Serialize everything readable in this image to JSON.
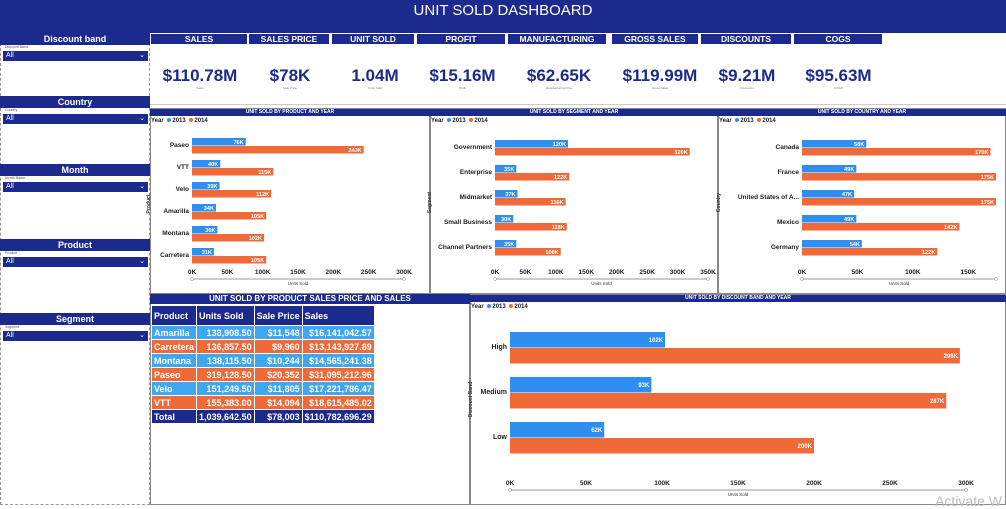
{
  "dashboard_title": "UNIT SOLD DASHBOARD",
  "colors": {
    "navy": "#1b2a8c",
    "y2013": "#2f8ff0",
    "y2014": "#ef6a38",
    "light": "#3fa7f0"
  },
  "slicers": [
    {
      "label": "Discount band",
      "field": "Discount Band",
      "value": "All"
    },
    {
      "label": "Country",
      "field": "Country",
      "value": "All"
    },
    {
      "label": "Month",
      "field": "Month Name",
      "value": "All"
    },
    {
      "label": "Product",
      "field": "Product",
      "value": "All"
    },
    {
      "label": "Segment",
      "field": "Segment",
      "value": "All"
    }
  ],
  "kpis": [
    {
      "header": "SALES",
      "value": "$110.78M",
      "sub": "Sales"
    },
    {
      "header": "SALES PRICE",
      "value": "$78K",
      "sub": "Sale Price"
    },
    {
      "header": "UNIT SOLD",
      "value": "1.04M",
      "sub": "Units Sold"
    },
    {
      "header": "PROFIT",
      "value": "$15.16M",
      "sub": "Profit"
    },
    {
      "header": "MANUFACTURING PRICE",
      "value": "$62.65K",
      "sub": "Manufacturing Price"
    },
    {
      "header": "GROSS SALES",
      "value": "$119.99M",
      "sub": "Gross Sales"
    },
    {
      "header": "DISCOUNTS",
      "value": "$9.21M",
      "sub": "Discounts"
    },
    {
      "header": "COGS",
      "value": "$95.63M",
      "sub": "COGS"
    }
  ],
  "legend": {
    "title": "Year",
    "y2013": "2013",
    "y2014": "2014"
  },
  "chart_data": [
    {
      "type": "bar",
      "orientation": "horizontal",
      "title": "UNIT SOLD BY PRODUCT AND YEAR",
      "ylabel": "Product",
      "xlabel": "Units Sold",
      "categories": [
        "Paseo",
        "VTT",
        "Velo",
        "Amarilla",
        "Montana",
        "Carretera"
      ],
      "series": [
        {
          "name": "2013",
          "values": [
            76000,
            40000,
            39000,
            34000,
            36000,
            31000
          ],
          "labels": [
            "76K",
            "40K",
            "39K",
            "34K",
            "36K",
            "31K"
          ]
        },
        {
          "name": "2014",
          "values": [
            243000,
            115000,
            112000,
            105000,
            102000,
            105000
          ],
          "labels": [
            "243K",
            "115K",
            "112K",
            "105K",
            "102K",
            "105K"
          ]
        }
      ],
      "xlim": [
        0,
        300000
      ],
      "ticks": [
        "0K",
        "50K",
        "100K",
        "150K",
        "200K",
        "250K",
        "300K"
      ]
    },
    {
      "type": "bar",
      "orientation": "horizontal",
      "title": "UNIT SOLD BY SEGMENT AND YEAR",
      "ylabel": "Segment",
      "xlabel": "Units Sold",
      "categories": [
        "Government",
        "Enterprise",
        "Midmarket",
        "Small Business",
        "Channel Partners"
      ],
      "series": [
        {
          "name": "2013",
          "values": [
            120000,
            35000,
            37000,
            30000,
            35000
          ],
          "labels": [
            "120K",
            "35K",
            "37K",
            "30K",
            "35K"
          ]
        },
        {
          "name": "2014",
          "values": [
            320000,
            122000,
            116000,
            118000,
            108000
          ],
          "labels": [
            "320K",
            "122K",
            "116K",
            "118K",
            "108K"
          ]
        }
      ],
      "xlim": [
        0,
        350000
      ],
      "ticks": [
        "0K",
        "50K",
        "100K",
        "150K",
        "200K",
        "250K",
        "300K",
        "350K"
      ]
    },
    {
      "type": "bar",
      "orientation": "horizontal",
      "title": "UNIT SOLD BY COUNTRY AND YEAR",
      "ylabel": "Country",
      "xlabel": "Units Sold",
      "categories": [
        "Canada",
        "France",
        "United States of A...",
        "Mexico",
        "Germany"
      ],
      "series": [
        {
          "name": "2013",
          "values": [
            58000,
            49000,
            47000,
            49000,
            54000
          ],
          "labels": [
            "58K",
            "49K",
            "47K",
            "49K",
            "54K"
          ]
        },
        {
          "name": "2014",
          "values": [
            170000,
            175000,
            175000,
            142000,
            122000
          ],
          "labels": [
            "170K",
            "175K",
            "175K",
            "142K",
            "122K"
          ]
        }
      ],
      "xlim": [
        0,
        175000
      ],
      "ticks": [
        "0K",
        "50K",
        "100K",
        "150K"
      ]
    },
    {
      "type": "bar",
      "orientation": "horizontal",
      "title": "UNIT SOLD BY DISCOUNT BAND AND YEAR",
      "ylabel": "Discount Band",
      "xlabel": "Units Sold",
      "categories": [
        "High",
        "Medium",
        "Low"
      ],
      "series": [
        {
          "name": "2013",
          "values": [
            102000,
            93000,
            62000
          ],
          "labels": [
            "102K",
            "93K",
            "62K"
          ]
        },
        {
          "name": "2014",
          "values": [
            296000,
            287000,
            200000
          ],
          "labels": [
            "296K",
            "287K",
            "200K"
          ]
        }
      ],
      "xlim": [
        0,
        300000
      ],
      "ticks": [
        "0K",
        "50K",
        "100K",
        "150K",
        "200K",
        "250K",
        "300K"
      ]
    },
    {
      "type": "table",
      "title": "UNIT SOLD BY PRODUCT SALES PRICE AND SALES",
      "columns": [
        "Product",
        "Units Sold",
        "Sale Price",
        "Sales"
      ],
      "rows": [
        [
          "Amarilla",
          "138,908.50",
          "$11,548",
          "$16,141,042.57"
        ],
        [
          "Carretera",
          "136,857.50",
          "$9,960",
          "$13,143,927.89"
        ],
        [
          "Montana",
          "138,115.50",
          "$10,244",
          "$14,565,241.38"
        ],
        [
          "Paseo",
          "319,128.50",
          "$20,352",
          "$31,095,212.96"
        ],
        [
          "Velo",
          "151,249.50",
          "$11,805",
          "$17,221,786.47"
        ],
        [
          "VTT",
          "155,383.00",
          "$14,094",
          "$18,615,485.02"
        ]
      ],
      "row_colors": [
        "#3fa7f0",
        "#ef6a38",
        "#3fa7f0",
        "#ef6a38",
        "#3fa7f0",
        "#ef6a38"
      ],
      "total": [
        "Total",
        "1,039,642.50",
        "$78,003",
        "$110,782,696.29"
      ]
    }
  ],
  "watermark": "Activate W"
}
